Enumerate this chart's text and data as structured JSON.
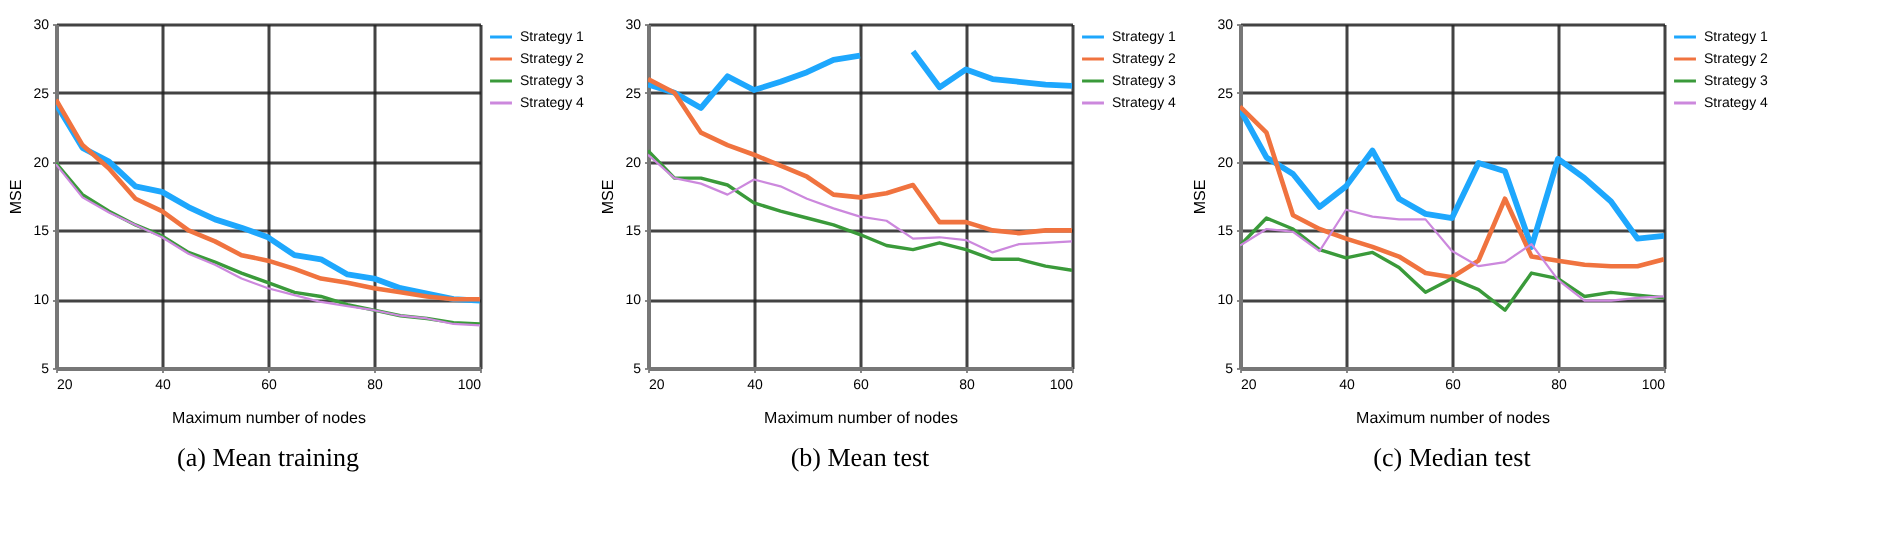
{
  "chart_data": [
    {
      "type": "line",
      "title": "(a) Mean training",
      "xlabel": "Maximum number of nodes",
      "ylabel": "MSE",
      "x": [
        20,
        25,
        30,
        35,
        40,
        45,
        50,
        55,
        60,
        65,
        70,
        75,
        80,
        85,
        90,
        95,
        100
      ],
      "series": [
        {
          "name": "Strategy 1",
          "color": "#1ea7fd",
          "values": [
            24.2,
            21.0,
            20.0,
            18.2,
            17.8,
            16.7,
            15.8,
            15.2,
            14.5,
            13.2,
            12.9,
            11.8,
            11.5,
            10.8,
            10.4,
            10.0,
            9.9
          ]
        },
        {
          "name": "Strategy 2",
          "color": "#f0733f",
          "values": [
            24.5,
            21.2,
            19.5,
            17.3,
            16.4,
            15.0,
            14.2,
            13.2,
            12.8,
            12.2,
            11.5,
            11.2,
            10.8,
            10.5,
            10.2,
            10.0,
            10.0
          ]
        },
        {
          "name": "Strategy 3",
          "color": "#3a9a3a",
          "values": [
            19.9,
            17.6,
            16.4,
            15.4,
            14.6,
            13.4,
            12.7,
            11.9,
            11.2,
            10.5,
            10.2,
            9.6,
            9.2,
            8.8,
            8.6,
            8.3,
            8.2
          ]
        },
        {
          "name": "Strategy 4",
          "color": "#cc88dd",
          "values": [
            19.8,
            17.4,
            16.3,
            15.4,
            14.5,
            13.3,
            12.5,
            11.5,
            10.8,
            10.3,
            9.8,
            9.5,
            9.2,
            8.8,
            8.6,
            8.2,
            8.1
          ]
        }
      ],
      "xlim": [
        20,
        100
      ],
      "xticks": [
        20,
        40,
        60,
        80,
        100
      ],
      "ylim": [
        5,
        30
      ],
      "yticks": [
        5,
        10,
        15,
        20,
        25,
        30
      ],
      "grid": true,
      "legend": "top right"
    },
    {
      "type": "line",
      "title": "(b) Mean test",
      "xlabel": "Maximum number of nodes",
      "ylabel": "MSE",
      "x": [
        20,
        25,
        30,
        35,
        40,
        45,
        50,
        55,
        60,
        65,
        70,
        75,
        80,
        85,
        90,
        95,
        100
      ],
      "series": [
        {
          "name": "Strategy 1",
          "color": "#1ea7fd",
          "values": [
            25.6,
            25.0,
            23.9,
            26.2,
            25.2,
            25.8,
            26.5,
            27.4,
            27.7,
            null,
            28.0,
            25.4,
            26.7,
            26.0,
            25.8,
            25.6,
            25.5
          ]
        },
        {
          "name": "Strategy 2",
          "color": "#f0733f",
          "values": [
            26.0,
            25.0,
            22.1,
            21.2,
            20.5,
            19.7,
            18.9,
            17.6,
            17.4,
            17.7,
            18.3,
            15.6,
            15.6,
            15.0,
            14.8,
            15.0,
            15.0
          ]
        },
        {
          "name": "Strategy 3",
          "color": "#3a9a3a",
          "values": [
            20.8,
            18.8,
            18.8,
            18.3,
            17.0,
            16.4,
            15.9,
            15.4,
            14.7,
            13.9,
            13.6,
            14.1,
            13.6,
            12.9,
            12.9,
            12.4,
            12.1
          ]
        },
        {
          "name": "Strategy 4",
          "color": "#cc88dd",
          "values": [
            20.5,
            18.8,
            18.4,
            17.6,
            18.7,
            18.2,
            17.3,
            16.6,
            16.0,
            15.7,
            14.4,
            14.5,
            14.3,
            13.4,
            14.0,
            14.1,
            14.2
          ]
        }
      ],
      "xlim": [
        20,
        100
      ],
      "xticks": [
        20,
        40,
        60,
        80,
        100
      ],
      "ylim": [
        5,
        30
      ],
      "yticks": [
        5,
        10,
        15,
        20,
        25,
        30
      ],
      "grid": true,
      "legend": "top right"
    },
    {
      "type": "line",
      "title": "(c) Median test",
      "xlabel": "Maximum number of nodes",
      "ylabel": "MSE",
      "x": [
        20,
        25,
        30,
        35,
        40,
        45,
        50,
        55,
        60,
        65,
        70,
        75,
        80,
        85,
        90,
        95,
        100
      ],
      "series": [
        {
          "name": "Strategy 1",
          "color": "#1ea7fd",
          "values": [
            23.8,
            20.3,
            19.1,
            16.7,
            18.2,
            20.8,
            17.3,
            16.2,
            15.9,
            19.9,
            19.3,
            13.8,
            20.2,
            18.8,
            17.1,
            14.4,
            14.6
          ]
        },
        {
          "name": "Strategy 2",
          "color": "#f0733f",
          "values": [
            24.0,
            22.1,
            16.1,
            15.1,
            14.4,
            13.8,
            13.1,
            11.9,
            11.6,
            12.8,
            17.3,
            13.1,
            12.8,
            12.5,
            12.4,
            12.4,
            12.9
          ]
        },
        {
          "name": "Strategy 3",
          "color": "#3a9a3a",
          "values": [
            13.9,
            15.9,
            15.1,
            13.6,
            13.0,
            13.4,
            12.3,
            10.5,
            11.5,
            10.7,
            9.2,
            11.9,
            11.5,
            10.2,
            10.5,
            10.3,
            10.1
          ]
        },
        {
          "name": "Strategy 4",
          "color": "#cc88dd",
          "values": [
            13.9,
            15.1,
            14.9,
            13.5,
            16.5,
            16.0,
            15.8,
            15.8,
            13.5,
            12.4,
            12.7,
            14.0,
            11.4,
            9.9,
            9.9,
            10.1,
            10.2
          ]
        }
      ],
      "xlim": [
        20,
        100
      ],
      "xticks": [
        20,
        40,
        60,
        80,
        100
      ],
      "ylim": [
        5,
        30
      ],
      "yticks": [
        5,
        10,
        15,
        20,
        25,
        30
      ],
      "grid": true,
      "legend": "top right"
    }
  ]
}
